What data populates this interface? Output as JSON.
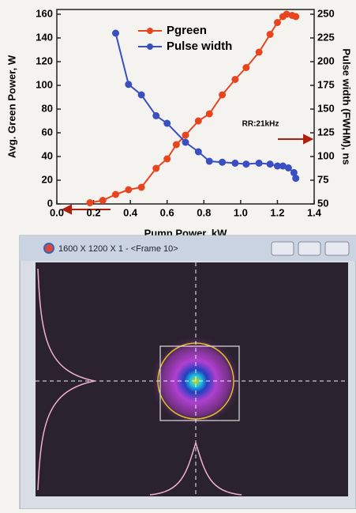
{
  "chart_data": {
    "type": "line",
    "xlabel": "Pump Power, kW",
    "ylabel": "Avg. Green Power, W",
    "y2label": "Pulse width (FWHM), ns",
    "annotation": "RR:21kHz",
    "xlim": [
      0,
      1.4
    ],
    "xticks": [
      {
        "value": 0,
        "label": "0.0"
      },
      0.2,
      0.4,
      0.6,
      0.8,
      {
        "value": 1,
        "label": "1.0"
      },
      1.2,
      1.4
    ],
    "ylim": [
      0,
      160
    ],
    "yticks": [
      0,
      20,
      40,
      60,
      80,
      100,
      120,
      140,
      160
    ],
    "y2lim": [
      50,
      250
    ],
    "y2ticks": [
      50,
      75,
      100,
      125,
      150,
      175,
      200,
      225,
      250
    ],
    "legend": "upper center",
    "series": [
      {
        "name": "Pgreen",
        "color": "#e8451e",
        "x": [
          0.18,
          0.25,
          0.32,
          0.39,
          0.46,
          0.54,
          0.6,
          0.65,
          0.7,
          0.77,
          0.83,
          0.9,
          0.97,
          1.03,
          1.1,
          1.16,
          1.2,
          1.23,
          1.25,
          1.28,
          1.3
        ],
        "values": [
          1,
          3,
          8,
          12,
          14,
          30,
          38,
          50,
          58,
          70,
          76,
          92,
          105,
          115,
          128,
          143,
          153,
          158,
          160,
          159,
          158
        ]
      },
      {
        "name": "Pulse width",
        "color": "#3a4fc0",
        "axis": "y2",
        "x": [
          0.32,
          0.39,
          0.46,
          0.54,
          0.6,
          0.7,
          0.77,
          0.83,
          0.9,
          0.97,
          1.03,
          1.1,
          1.16,
          1.2,
          1.23,
          1.26,
          1.29,
          1.3
        ],
        "values": [
          230,
          176,
          165,
          143,
          135,
          115,
          105,
          95,
          94,
          93,
          92,
          93,
          92,
          90,
          90,
          88,
          83,
          77
        ]
      }
    ]
  },
  "window": {
    "title": "1600 X 1200 X 1 - <Frame 10>"
  }
}
